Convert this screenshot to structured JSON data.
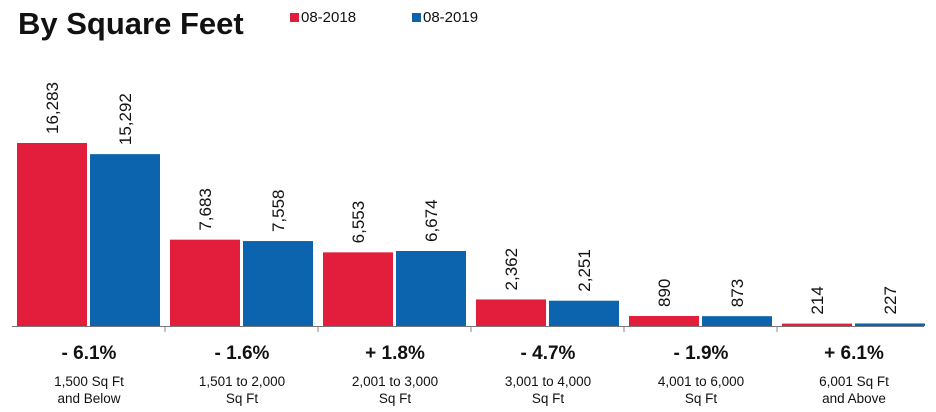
{
  "chart_data": {
    "type": "bar",
    "title": "By Square Feet",
    "categories": [
      [
        "1,500 Sq Ft",
        "and Below"
      ],
      [
        "1,501 to 2,000",
        "Sq Ft"
      ],
      [
        "2,001 to 3,000",
        "Sq Ft"
      ],
      [
        "3,001 to 4,000",
        "Sq Ft"
      ],
      [
        "4,001 to 6,000",
        "Sq Ft"
      ],
      [
        "6,001 Sq Ft",
        "and Above"
      ]
    ],
    "series": [
      {
        "name": "08-2018",
        "color": "#e31d3c",
        "values": [
          16283,
          7683,
          6553,
          2362,
          890,
          214
        ],
        "value_labels": [
          "16,283",
          "7,683",
          "6,553",
          "2,362",
          "890",
          "214"
        ]
      },
      {
        "name": "08-2019",
        "color": "#0b64ad",
        "values": [
          15292,
          7558,
          6674,
          2251,
          873,
          227
        ],
        "value_labels": [
          "15,292",
          "7,558",
          "6,674",
          "2,251",
          "873",
          "227"
        ]
      }
    ],
    "changes": [
      "- 6.1%",
      "- 1.6%",
      "+ 1.8%",
      "- 4.7%",
      "- 1.9%",
      "+ 6.1%"
    ]
  }
}
